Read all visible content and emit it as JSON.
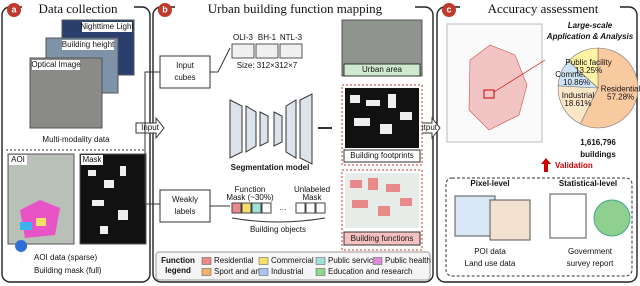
{
  "panels": [
    {
      "letter": "a",
      "title": "Data collection"
    },
    {
      "letter": "b",
      "title": "Urban building function mapping"
    },
    {
      "letter": "c",
      "title": "Accuracy assessment"
    }
  ],
  "data_collection": {
    "layers": [
      "Nighttime Light",
      "Building height",
      "Optical Image"
    ],
    "caption": "Multi-modality data",
    "aoi": "AOI",
    "mask": "Mask",
    "aoi_caption": "AOI data (sparse)",
    "mask_caption": "Building mask (full)"
  },
  "arrows": {
    "input": "Input",
    "output": "Output"
  },
  "mapping": {
    "input_cubes": [
      "Input",
      "cubes"
    ],
    "cubes": [
      "OLI-3",
      "BH-1",
      "NTL-3"
    ],
    "size": "Size: 312×312×7",
    "model": "Segmentation model",
    "weak_labels": [
      "Weakly",
      "labels"
    ],
    "function_mask": [
      "Function",
      "Mask (~30%)"
    ],
    "ellipsis": "...",
    "unlabeled_mask": [
      "Unlabeled",
      "Mask"
    ],
    "objects": "Building objects",
    "outputs": [
      "Urban area",
      "Building footprints",
      "Building functions"
    ]
  },
  "legend": {
    "title": [
      "Function",
      "legend"
    ],
    "items": [
      {
        "label": "Residential",
        "color": "#e88a8a"
      },
      {
        "label": "Commercial",
        "color": "#f3df6a"
      },
      {
        "label": "Public service",
        "color": "#9fe0d8"
      },
      {
        "label": "Public health",
        "color": "#d98ad9"
      },
      {
        "label": "Sport and art",
        "color": "#f5b06a"
      },
      {
        "label": "Industrial",
        "color": "#a9c4f0"
      },
      {
        "label": "Education and research",
        "color": "#8fd88f"
      }
    ]
  },
  "assessment": {
    "heading": [
      "Large-scale",
      "Application & Analysis"
    ],
    "pie": {
      "slices": [
        {
          "label": "Residential",
          "value": 57.28,
          "value_label": "57.28%",
          "color": "#f9c9a0"
        },
        {
          "label": "Industrial",
          "value": 18.61,
          "value_label": "18.61%",
          "color": "#fbe6c8"
        },
        {
          "label": "Commercial",
          "value": 10.86,
          "value_label": "10.86%",
          "color": "#cfe3f5"
        },
        {
          "label": "Public facility",
          "value": 13.25,
          "value_label": "13.25%",
          "color": "#fff3a6"
        }
      ]
    },
    "count": "1,616,796",
    "count_unit": "buildings",
    "validation": "Validation",
    "levels": [
      "Pixel-level",
      "Statistical-level"
    ],
    "pixel_sources": [
      "POI data",
      "Land use data"
    ],
    "stat_sources": [
      "Government",
      "survey report"
    ]
  }
}
